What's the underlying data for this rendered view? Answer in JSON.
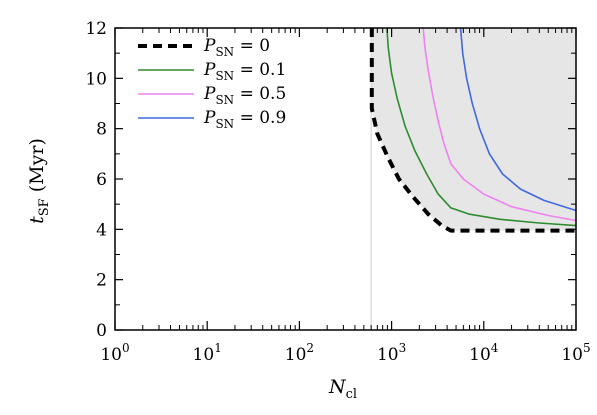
{
  "chart_data": {
    "type": "line",
    "xaxis": {
      "scale": "log",
      "range": [
        1,
        100000
      ],
      "label_main": "N",
      "label_sub": "cl",
      "ticks": [
        {
          "value": 1,
          "base": "10",
          "exp": "0"
        },
        {
          "value": 10,
          "base": "10",
          "exp": "1"
        },
        {
          "value": 100,
          "base": "10",
          "exp": "2"
        },
        {
          "value": 1000,
          "base": "10",
          "exp": "3"
        },
        {
          "value": 10000,
          "base": "10",
          "exp": "4"
        },
        {
          "value": 100000,
          "base": "10",
          "exp": "5"
        }
      ]
    },
    "yaxis": {
      "scale": "linear",
      "range": [
        0,
        12
      ],
      "label_main": "t",
      "label_sub": "SF",
      "label_unit": " (Myr)",
      "ticks": [
        {
          "value": 0,
          "label": "0"
        },
        {
          "value": 2,
          "label": "2"
        },
        {
          "value": 4,
          "label": "4"
        },
        {
          "value": 6,
          "label": "6"
        },
        {
          "value": 8,
          "label": "8"
        },
        {
          "value": 10,
          "label": "10"
        },
        {
          "value": 12,
          "label": "12"
        }
      ]
    },
    "grid": false,
    "legend_position": "top-left",
    "shaded_region": {
      "color": "#e6e6e6",
      "bounded_by": "P_SN = 0"
    },
    "reference_line": {
      "x": 600,
      "color": "#cccccc"
    },
    "series": [
      {
        "name_var": "P",
        "name_sub": "SN",
        "name_rest": " = 0",
        "color": "#000000",
        "style": "dashed",
        "points": [
          [
            610,
            12
          ],
          [
            610,
            8.8
          ],
          [
            700,
            7.8
          ],
          [
            900,
            6.9
          ],
          [
            1200,
            6.0
          ],
          [
            1700,
            5.3
          ],
          [
            2500,
            4.6
          ],
          [
            3500,
            4.15
          ],
          [
            4400,
            3.95
          ],
          [
            100000,
            3.95
          ]
        ]
      },
      {
        "name_var": "P",
        "name_sub": "SN",
        "name_rest": " = 0.1",
        "color": "#2e8b2e",
        "style": "solid",
        "points": [
          [
            890,
            12
          ],
          [
            920,
            11.2
          ],
          [
            1000,
            10.2
          ],
          [
            1150,
            9.2
          ],
          [
            1400,
            8.1
          ],
          [
            1800,
            7.1
          ],
          [
            2400,
            6.2
          ],
          [
            3200,
            5.4
          ],
          [
            4400,
            4.85
          ],
          [
            7000,
            4.6
          ],
          [
            15000,
            4.4
          ],
          [
            40000,
            4.25
          ],
          [
            100000,
            4.15
          ]
        ]
      },
      {
        "name_var": "P",
        "name_sub": "SN",
        "name_rest": " = 0.5",
        "color": "#ee82ee",
        "style": "solid",
        "points": [
          [
            2200,
            12
          ],
          [
            2300,
            11.2
          ],
          [
            2500,
            10.3
          ],
          [
            2800,
            9.3
          ],
          [
            3200,
            8.3
          ],
          [
            3700,
            7.4
          ],
          [
            4400,
            6.6
          ],
          [
            6000,
            6.0
          ],
          [
            10000,
            5.4
          ],
          [
            20000,
            4.9
          ],
          [
            50000,
            4.55
          ],
          [
            100000,
            4.35
          ]
        ]
      },
      {
        "name_var": "P",
        "name_sub": "SN",
        "name_rest": " = 0.9",
        "color": "#4169e1",
        "style": "solid",
        "points": [
          [
            5600,
            12
          ],
          [
            5900,
            11.0
          ],
          [
            6500,
            10.0
          ],
          [
            7500,
            9.0
          ],
          [
            9000,
            8.0
          ],
          [
            11500,
            7.0
          ],
          [
            16000,
            6.2
          ],
          [
            25000,
            5.6
          ],
          [
            45000,
            5.15
          ],
          [
            100000,
            4.75
          ]
        ]
      }
    ]
  }
}
